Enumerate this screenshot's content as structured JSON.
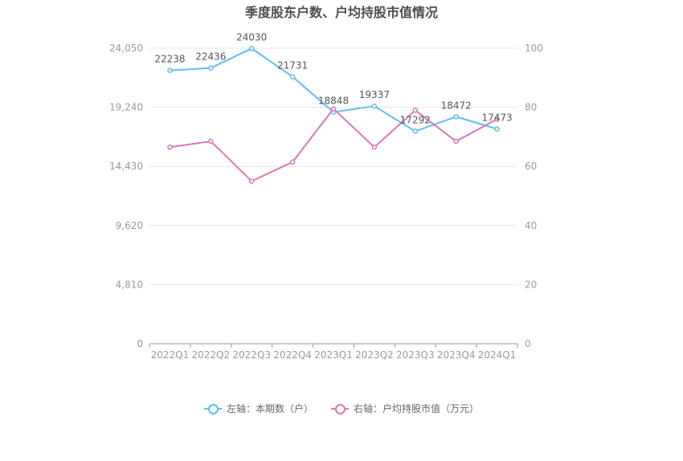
{
  "chart_data": {
    "type": "line",
    "title": "季度股东户数、户均持股市值情况",
    "categories": [
      "2022Q1",
      "2022Q2",
      "2022Q3",
      "2022Q4",
      "2023Q1",
      "2023Q2",
      "2023Q3",
      "2023Q4",
      "2024Q1"
    ],
    "left_axis": {
      "ticks": [
        "0",
        "4,810",
        "9,620",
        "14,430",
        "19,240",
        "24,050"
      ],
      "ylim": [
        0,
        24050
      ]
    },
    "right_axis": {
      "ticks": [
        "0",
        "20",
        "40",
        "60",
        "80",
        "100"
      ],
      "ylim": [
        0,
        100
      ]
    },
    "grid": true,
    "legend_position": "bottom",
    "series": [
      {
        "name": "左轴：本期数（户）",
        "axis": "left",
        "color": "#5bc0f0",
        "values": [
          22238,
          22436,
          24030,
          21731,
          18848,
          19337,
          17292,
          18472,
          17473
        ],
        "labels": [
          "22238",
          "22436",
          "24030",
          "21731",
          "18848",
          "19337",
          "17292",
          "18472",
          "17473"
        ]
      },
      {
        "name": "右轴：户均持股市值（万元）",
        "axis": "right",
        "color": "#d878b8",
        "values": [
          66.5,
          68.5,
          55,
          61.5,
          79.5,
          66.5,
          79,
          68.5,
          76
        ]
      }
    ]
  }
}
